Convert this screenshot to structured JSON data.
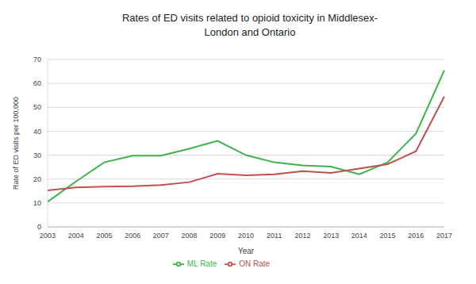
{
  "chart_data": {
    "type": "line",
    "title": "Rates of ED visits related to opioid toxicity in Middlesex-London and Ontario",
    "x_label": "Year",
    "y_label": "Rate of ED visits per 100,000",
    "categories": [
      "2003",
      "2004",
      "2005",
      "2006",
      "2007",
      "2008",
      "2009",
      "2010",
      "2011",
      "2012",
      "2013",
      "2014",
      "2015",
      "2016",
      "2017"
    ],
    "series": [
      {
        "name": "ML Rate",
        "color": "#3cb44a",
        "values": [
          10.5,
          19,
          27,
          29.8,
          29.8,
          32.7,
          36,
          30,
          27,
          25.7,
          25.2,
          22,
          27,
          39,
          65.5
        ]
      },
      {
        "name": "ON Rate",
        "color": "#c0504d",
        "values": [
          15.3,
          16.5,
          16.8,
          17,
          17.5,
          18.7,
          22.2,
          21.6,
          22,
          23.3,
          22.6,
          24.4,
          26.2,
          31.6,
          54.5
        ]
      }
    ],
    "ylim": [
      0,
      70
    ],
    "yticks": [
      0,
      10,
      20,
      30,
      40,
      50,
      60,
      70
    ],
    "grid": true,
    "legend": "bottom"
  }
}
